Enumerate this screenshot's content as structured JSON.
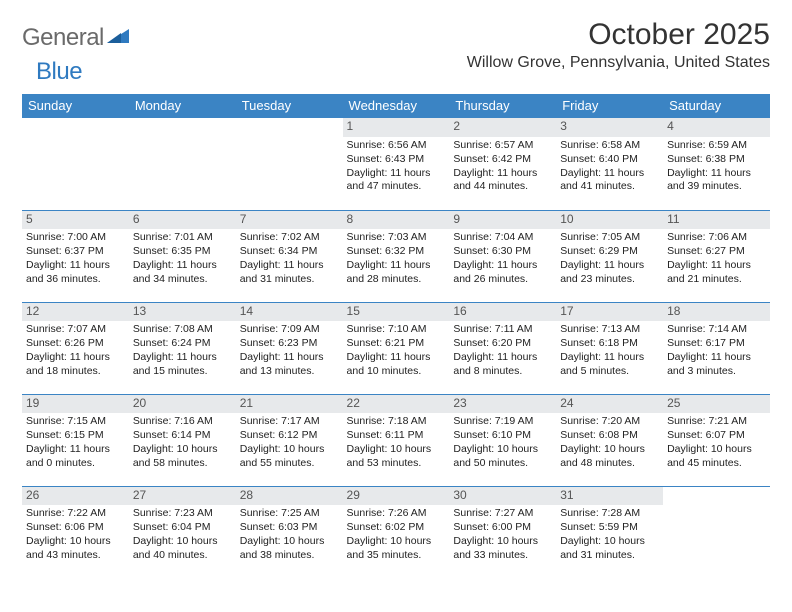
{
  "brand": {
    "part1": "General",
    "part2": "Blue"
  },
  "title": "October 2025",
  "location": "Willow Grove, Pennsylvania, United States",
  "day_headers": [
    "Sunday",
    "Monday",
    "Tuesday",
    "Wednesday",
    "Thursday",
    "Friday",
    "Saturday"
  ],
  "colors": {
    "header_bg": "#3b84c4",
    "header_fg": "#ffffff",
    "daynum_bg": "#e7e9eb",
    "logo_gray": "#6a6a6a",
    "logo_blue": "#2f7ac0"
  },
  "weeks": [
    [
      null,
      null,
      null,
      {
        "n": "1",
        "sr": "6:56 AM",
        "ss": "6:43 PM",
        "dl": "11 hours and 47 minutes."
      },
      {
        "n": "2",
        "sr": "6:57 AM",
        "ss": "6:42 PM",
        "dl": "11 hours and 44 minutes."
      },
      {
        "n": "3",
        "sr": "6:58 AM",
        "ss": "6:40 PM",
        "dl": "11 hours and 41 minutes."
      },
      {
        "n": "4",
        "sr": "6:59 AM",
        "ss": "6:38 PM",
        "dl": "11 hours and 39 minutes."
      }
    ],
    [
      {
        "n": "5",
        "sr": "7:00 AM",
        "ss": "6:37 PM",
        "dl": "11 hours and 36 minutes."
      },
      {
        "n": "6",
        "sr": "7:01 AM",
        "ss": "6:35 PM",
        "dl": "11 hours and 34 minutes."
      },
      {
        "n": "7",
        "sr": "7:02 AM",
        "ss": "6:34 PM",
        "dl": "11 hours and 31 minutes."
      },
      {
        "n": "8",
        "sr": "7:03 AM",
        "ss": "6:32 PM",
        "dl": "11 hours and 28 minutes."
      },
      {
        "n": "9",
        "sr": "7:04 AM",
        "ss": "6:30 PM",
        "dl": "11 hours and 26 minutes."
      },
      {
        "n": "10",
        "sr": "7:05 AM",
        "ss": "6:29 PM",
        "dl": "11 hours and 23 minutes."
      },
      {
        "n": "11",
        "sr": "7:06 AM",
        "ss": "6:27 PM",
        "dl": "11 hours and 21 minutes."
      }
    ],
    [
      {
        "n": "12",
        "sr": "7:07 AM",
        "ss": "6:26 PM",
        "dl": "11 hours and 18 minutes."
      },
      {
        "n": "13",
        "sr": "7:08 AM",
        "ss": "6:24 PM",
        "dl": "11 hours and 15 minutes."
      },
      {
        "n": "14",
        "sr": "7:09 AM",
        "ss": "6:23 PM",
        "dl": "11 hours and 13 minutes."
      },
      {
        "n": "15",
        "sr": "7:10 AM",
        "ss": "6:21 PM",
        "dl": "11 hours and 10 minutes."
      },
      {
        "n": "16",
        "sr": "7:11 AM",
        "ss": "6:20 PM",
        "dl": "11 hours and 8 minutes."
      },
      {
        "n": "17",
        "sr": "7:13 AM",
        "ss": "6:18 PM",
        "dl": "11 hours and 5 minutes."
      },
      {
        "n": "18",
        "sr": "7:14 AM",
        "ss": "6:17 PM",
        "dl": "11 hours and 3 minutes."
      }
    ],
    [
      {
        "n": "19",
        "sr": "7:15 AM",
        "ss": "6:15 PM",
        "dl": "11 hours and 0 minutes."
      },
      {
        "n": "20",
        "sr": "7:16 AM",
        "ss": "6:14 PM",
        "dl": "10 hours and 58 minutes."
      },
      {
        "n": "21",
        "sr": "7:17 AM",
        "ss": "6:12 PM",
        "dl": "10 hours and 55 minutes."
      },
      {
        "n": "22",
        "sr": "7:18 AM",
        "ss": "6:11 PM",
        "dl": "10 hours and 53 minutes."
      },
      {
        "n": "23",
        "sr": "7:19 AM",
        "ss": "6:10 PM",
        "dl": "10 hours and 50 minutes."
      },
      {
        "n": "24",
        "sr": "7:20 AM",
        "ss": "6:08 PM",
        "dl": "10 hours and 48 minutes."
      },
      {
        "n": "25",
        "sr": "7:21 AM",
        "ss": "6:07 PM",
        "dl": "10 hours and 45 minutes."
      }
    ],
    [
      {
        "n": "26",
        "sr": "7:22 AM",
        "ss": "6:06 PM",
        "dl": "10 hours and 43 minutes."
      },
      {
        "n": "27",
        "sr": "7:23 AM",
        "ss": "6:04 PM",
        "dl": "10 hours and 40 minutes."
      },
      {
        "n": "28",
        "sr": "7:25 AM",
        "ss": "6:03 PM",
        "dl": "10 hours and 38 minutes."
      },
      {
        "n": "29",
        "sr": "7:26 AM",
        "ss": "6:02 PM",
        "dl": "10 hours and 35 minutes."
      },
      {
        "n": "30",
        "sr": "7:27 AM",
        "ss": "6:00 PM",
        "dl": "10 hours and 33 minutes."
      },
      {
        "n": "31",
        "sr": "7:28 AM",
        "ss": "5:59 PM",
        "dl": "10 hours and 31 minutes."
      },
      null
    ]
  ],
  "labels": {
    "sunrise": "Sunrise:",
    "sunset": "Sunset:",
    "daylight": "Daylight:"
  }
}
